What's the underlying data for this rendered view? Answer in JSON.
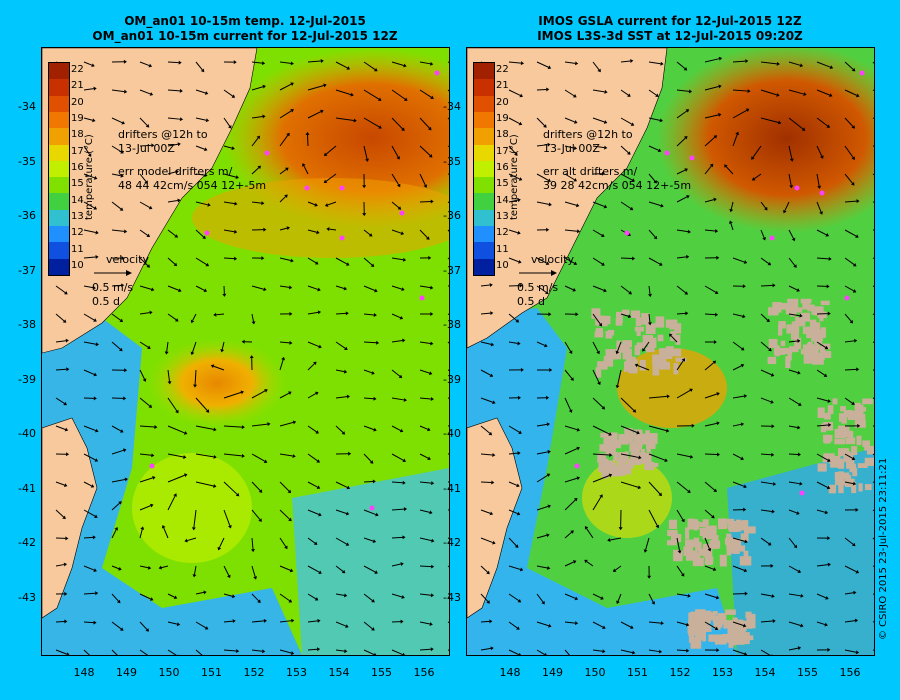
{
  "left_panel": {
    "title_line1": "OM_an01 10-15m temp. 12-Jul-2015",
    "title_line2": "OM_an01 10-15m current for 12-Jul-2015 12Z",
    "drifters_line1": "drifters @12h to",
    "drifters_line2": "13-Jul 00Z",
    "err_line1": "err model drifters m/",
    "err_line2": "48 44 42cm/s 054 12+-5m",
    "velocity_label": "velocity",
    "velocity_speed": "0.5 m/s",
    "velocity_time": "0.5 d"
  },
  "right_panel": {
    "title_line1": "IMOS GSLA current for 12-Jul-2015 12Z",
    "title_line2": "IMOS L3S-3d SST at 12-Jul-2015 09:20Z",
    "drifters_line1": "drifters @12h to",
    "drifters_line2": "13-Jul 00Z",
    "err_line1": "err alt drifters m/",
    "err_line2": "39 28 42cm/s 054 12+-5m",
    "velocity_label": "velocity",
    "velocity_speed": "0.5 m/s",
    "velocity_time": "0.5 d"
  },
  "colorbar": {
    "title": "temperature (°C)",
    "ticks": [
      "22",
      "21",
      "20",
      "19",
      "18",
      "17",
      "16",
      "15",
      "14",
      "13",
      "12",
      "11",
      "10"
    ]
  },
  "lat_ticks": [
    "-34",
    "-35",
    "-36",
    "-37",
    "-38",
    "-39",
    "-40",
    "-41",
    "-42",
    "-43"
  ],
  "lon_ticks": [
    "148",
    "149",
    "150",
    "151",
    "152",
    "153",
    "154",
    "155",
    "156"
  ],
  "copyright": "© CSIRO 2015   23-Jul-2015 23:11:21",
  "colors": {
    "background": "#00c8ff",
    "land": "#f7c99c",
    "warm": "#c84800",
    "orange": "#f0a000",
    "green": "#7ee000",
    "lightblue": "#30b0ff",
    "nodata": "#c8b09a",
    "drifter": "#ff40ff"
  }
}
